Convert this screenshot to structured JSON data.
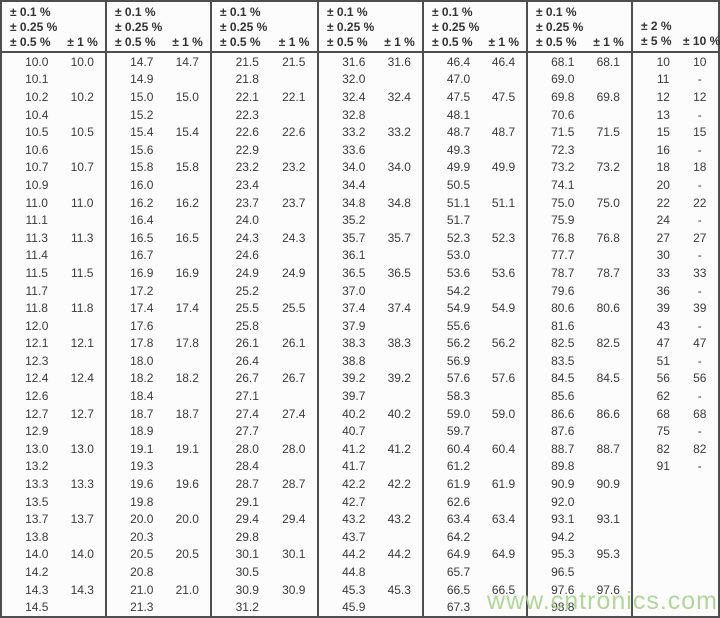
{
  "table": {
    "description": "Standard resistor decade value table (E192/E96 with E24/E12) by tolerance",
    "groups": [
      {
        "header_lines": [
          "± 0.1 %",
          "± 0.25 %",
          "± 0.5 %"
        ],
        "header_right": "± 1 %",
        "rows": [
          [
            "10.0",
            "10.0"
          ],
          [
            "10.1",
            ""
          ],
          [
            "10.2",
            "10.2"
          ],
          [
            "10.4",
            ""
          ],
          [
            "10.5",
            "10.5"
          ],
          [
            "10.6",
            ""
          ],
          [
            "10.7",
            "10.7"
          ],
          [
            "10.9",
            ""
          ],
          [
            "11.0",
            "11.0"
          ],
          [
            "11.1",
            ""
          ],
          [
            "11.3",
            "11.3"
          ],
          [
            "11.4",
            ""
          ],
          [
            "11.5",
            "11.5"
          ],
          [
            "11.7",
            ""
          ],
          [
            "11.8",
            "11.8"
          ],
          [
            "12.0",
            ""
          ],
          [
            "12.1",
            "12.1"
          ],
          [
            "12.3",
            ""
          ],
          [
            "12.4",
            "12.4"
          ],
          [
            "12.6",
            ""
          ],
          [
            "12.7",
            "12.7"
          ],
          [
            "12.9",
            ""
          ],
          [
            "13.0",
            "13.0"
          ],
          [
            "13.2",
            ""
          ],
          [
            "13.3",
            "13.3"
          ],
          [
            "13.5",
            ""
          ],
          [
            "13.7",
            "13.7"
          ],
          [
            "13.8",
            ""
          ],
          [
            "14.0",
            "14.0"
          ],
          [
            "14.2",
            ""
          ],
          [
            "14.3",
            "14.3"
          ],
          [
            "14.5",
            ""
          ]
        ]
      },
      {
        "header_lines": [
          "± 0.1 %",
          "± 0.25 %",
          "± 0.5 %"
        ],
        "header_right": "± 1 %",
        "rows": [
          [
            "14.7",
            "14.7"
          ],
          [
            "14.9",
            ""
          ],
          [
            "15.0",
            "15.0"
          ],
          [
            "15.2",
            ""
          ],
          [
            "15.4",
            "15.4"
          ],
          [
            "15.6",
            ""
          ],
          [
            "15.8",
            "15.8"
          ],
          [
            "16.0",
            ""
          ],
          [
            "16.2",
            "16.2"
          ],
          [
            "16.4",
            ""
          ],
          [
            "16.5",
            "16.5"
          ],
          [
            "16.7",
            ""
          ],
          [
            "16.9",
            "16.9"
          ],
          [
            "17.2",
            ""
          ],
          [
            "17.4",
            "17.4"
          ],
          [
            "17.6",
            ""
          ],
          [
            "17.8",
            "17.8"
          ],
          [
            "18.0",
            ""
          ],
          [
            "18.2",
            "18.2"
          ],
          [
            "18.4",
            ""
          ],
          [
            "18.7",
            "18.7"
          ],
          [
            "18.9",
            ""
          ],
          [
            "19.1",
            "19.1"
          ],
          [
            "19.3",
            ""
          ],
          [
            "19.6",
            "19.6"
          ],
          [
            "19.8",
            ""
          ],
          [
            "20.0",
            "20.0"
          ],
          [
            "20.3",
            ""
          ],
          [
            "20.5",
            "20.5"
          ],
          [
            "20.8",
            ""
          ],
          [
            "21.0",
            "21.0"
          ],
          [
            "21.3",
            ""
          ]
        ]
      },
      {
        "header_lines": [
          "± 0.1 %",
          "± 0.25 %",
          "± 0.5 %"
        ],
        "header_right": "± 1 %",
        "rows": [
          [
            "21.5",
            "21.5"
          ],
          [
            "21.8",
            ""
          ],
          [
            "22.1",
            "22.1"
          ],
          [
            "22.3",
            ""
          ],
          [
            "22.6",
            "22.6"
          ],
          [
            "22.9",
            ""
          ],
          [
            "23.2",
            "23.2"
          ],
          [
            "23.4",
            ""
          ],
          [
            "23.7",
            "23.7"
          ],
          [
            "24.0",
            ""
          ],
          [
            "24.3",
            "24.3"
          ],
          [
            "24.6",
            ""
          ],
          [
            "24.9",
            "24.9"
          ],
          [
            "25.2",
            ""
          ],
          [
            "25.5",
            "25.5"
          ],
          [
            "25.8",
            ""
          ],
          [
            "26.1",
            "26.1"
          ],
          [
            "26.4",
            ""
          ],
          [
            "26.7",
            "26.7"
          ],
          [
            "27.1",
            ""
          ],
          [
            "27.4",
            "27.4"
          ],
          [
            "27.7",
            ""
          ],
          [
            "28.0",
            "28.0"
          ],
          [
            "28.4",
            ""
          ],
          [
            "28.7",
            "28.7"
          ],
          [
            "29.1",
            ""
          ],
          [
            "29.4",
            "29.4"
          ],
          [
            "29.8",
            ""
          ],
          [
            "30.1",
            "30.1"
          ],
          [
            "30.5",
            ""
          ],
          [
            "30.9",
            "30.9"
          ],
          [
            "31.2",
            ""
          ]
        ]
      },
      {
        "header_lines": [
          "± 0.1 %",
          "± 0.25 %",
          "± 0.5 %"
        ],
        "header_right": "± 1 %",
        "rows": [
          [
            "31.6",
            "31.6"
          ],
          [
            "32.0",
            ""
          ],
          [
            "32.4",
            "32.4"
          ],
          [
            "32.8",
            ""
          ],
          [
            "33.2",
            "33.2"
          ],
          [
            "33.6",
            ""
          ],
          [
            "34.0",
            "34.0"
          ],
          [
            "34.4",
            ""
          ],
          [
            "34.8",
            "34.8"
          ],
          [
            "35.2",
            ""
          ],
          [
            "35.7",
            "35.7"
          ],
          [
            "36.1",
            ""
          ],
          [
            "36.5",
            "36.5"
          ],
          [
            "37.0",
            ""
          ],
          [
            "37.4",
            "37.4"
          ],
          [
            "37.9",
            ""
          ],
          [
            "38.3",
            "38.3"
          ],
          [
            "38.8",
            ""
          ],
          [
            "39.2",
            "39.2"
          ],
          [
            "39.7",
            ""
          ],
          [
            "40.2",
            "40.2"
          ],
          [
            "40.7",
            ""
          ],
          [
            "41.2",
            "41.2"
          ],
          [
            "41.7",
            ""
          ],
          [
            "42.2",
            "42.2"
          ],
          [
            "42.7",
            ""
          ],
          [
            "43.2",
            "43.2"
          ],
          [
            "43.7",
            ""
          ],
          [
            "44.2",
            "44.2"
          ],
          [
            "44.8",
            ""
          ],
          [
            "45.3",
            "45.3"
          ],
          [
            "45.9",
            ""
          ]
        ]
      },
      {
        "header_lines": [
          "± 0.1 %",
          "± 0.25 %",
          "± 0.5 %"
        ],
        "header_right": "± 1 %",
        "rows": [
          [
            "46.4",
            "46.4"
          ],
          [
            "47.0",
            ""
          ],
          [
            "47.5",
            "47.5"
          ],
          [
            "48.1",
            ""
          ],
          [
            "48.7",
            "48.7"
          ],
          [
            "49.3",
            ""
          ],
          [
            "49.9",
            "49.9"
          ],
          [
            "50.5",
            ""
          ],
          [
            "51.1",
            "51.1"
          ],
          [
            "51.7",
            ""
          ],
          [
            "52.3",
            "52.3"
          ],
          [
            "53.0",
            ""
          ],
          [
            "53.6",
            "53.6"
          ],
          [
            "54.2",
            ""
          ],
          [
            "54.9",
            "54.9"
          ],
          [
            "55.6",
            ""
          ],
          [
            "56.2",
            "56.2"
          ],
          [
            "56.9",
            ""
          ],
          [
            "57.6",
            "57.6"
          ],
          [
            "58.3",
            ""
          ],
          [
            "59.0",
            "59.0"
          ],
          [
            "59.7",
            ""
          ],
          [
            "60.4",
            "60.4"
          ],
          [
            "61.2",
            ""
          ],
          [
            "61.9",
            "61.9"
          ],
          [
            "62.6",
            ""
          ],
          [
            "63.4",
            "63.4"
          ],
          [
            "64.2",
            ""
          ],
          [
            "64.9",
            "64.9"
          ],
          [
            "65.7",
            ""
          ],
          [
            "66.5",
            "66.5"
          ],
          [
            "67.3",
            ""
          ]
        ]
      },
      {
        "header_lines": [
          "± 0.1 %",
          "± 0.25 %",
          "± 0.5 %"
        ],
        "header_right": "± 1 %",
        "rows": [
          [
            "68.1",
            "68.1"
          ],
          [
            "69.0",
            ""
          ],
          [
            "69.8",
            "69.8"
          ],
          [
            "70.6",
            ""
          ],
          [
            "71.5",
            "71.5"
          ],
          [
            "72.3",
            ""
          ],
          [
            "73.2",
            "73.2"
          ],
          [
            "74.1",
            ""
          ],
          [
            "75.0",
            "75.0"
          ],
          [
            "75.9",
            ""
          ],
          [
            "76.8",
            "76.8"
          ],
          [
            "77.7",
            ""
          ],
          [
            "78.7",
            "78.7"
          ],
          [
            "79.6",
            ""
          ],
          [
            "80.6",
            "80.6"
          ],
          [
            "81.6",
            ""
          ],
          [
            "82.5",
            "82.5"
          ],
          [
            "83.5",
            ""
          ],
          [
            "84.5",
            "84.5"
          ],
          [
            "85.6",
            ""
          ],
          [
            "86.6",
            "86.6"
          ],
          [
            "87.6",
            ""
          ],
          [
            "88.7",
            "88.7"
          ],
          [
            "89.8",
            ""
          ],
          [
            "90.9",
            "90.9"
          ],
          [
            "92.0",
            ""
          ],
          [
            "93.1",
            "93.1"
          ],
          [
            "94.2",
            ""
          ],
          [
            "95.3",
            "95.3"
          ],
          [
            "96.5",
            ""
          ],
          [
            "97.6",
            "97.6"
          ],
          [
            "98.8",
            ""
          ]
        ]
      },
      {
        "header_lines": [
          "± 2 %",
          "± 5 %"
        ],
        "header_right": "± 10 %",
        "rows": [
          [
            "10",
            "10"
          ],
          [
            "11",
            "-"
          ],
          [
            "12",
            "12"
          ],
          [
            "13",
            "-"
          ],
          [
            "15",
            "15"
          ],
          [
            "16",
            "-"
          ],
          [
            "18",
            "18"
          ],
          [
            "20",
            "-"
          ],
          [
            "22",
            "22"
          ],
          [
            "24",
            "-"
          ],
          [
            "27",
            "27"
          ],
          [
            "30",
            "-"
          ],
          [
            "33",
            "33"
          ],
          [
            "36",
            "-"
          ],
          [
            "39",
            "39"
          ],
          [
            "43",
            "-"
          ],
          [
            "47",
            "47"
          ],
          [
            "51",
            "-"
          ],
          [
            "56",
            "56"
          ],
          [
            "62",
            "-"
          ],
          [
            "68",
            "68"
          ],
          [
            "75",
            "-"
          ],
          [
            "82",
            "82"
          ],
          [
            "91",
            "-"
          ],
          [
            "",
            ""
          ],
          [
            "",
            ""
          ],
          [
            "",
            ""
          ],
          [
            "",
            ""
          ],
          [
            "",
            ""
          ],
          [
            "",
            ""
          ],
          [
            "",
            ""
          ],
          [
            "",
            ""
          ]
        ]
      }
    ]
  },
  "watermark": {
    "text": "www.cntronics.com"
  },
  "colors": {
    "border": "#4e4e4e",
    "text": "#3a3a3a",
    "watermark_green": "#aed593",
    "background": "#fcfcfc"
  }
}
